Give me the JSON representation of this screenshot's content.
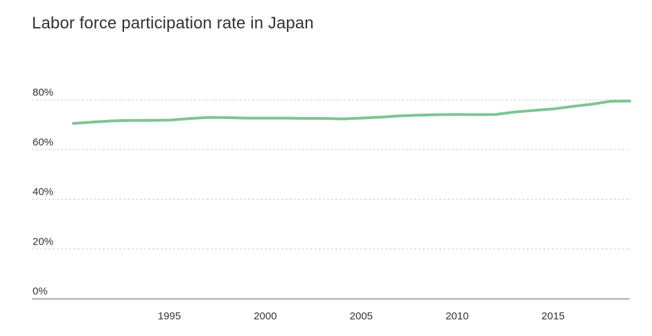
{
  "chart_data": {
    "type": "line",
    "title": "Labor force participation rate in Japan",
    "xlabel": "",
    "ylabel": "",
    "xlim": [
      1990,
      2019
    ],
    "ylim": [
      0,
      80
    ],
    "y_ticks": [
      {
        "value": 0,
        "label": "0%"
      },
      {
        "value": 20,
        "label": "20%"
      },
      {
        "value": 40,
        "label": "40%"
      },
      {
        "value": 60,
        "label": "60%"
      },
      {
        "value": 80,
        "label": "80%"
      }
    ],
    "x_ticks": [
      {
        "value": 1995,
        "label": "1995"
      },
      {
        "value": 2000,
        "label": "2000"
      },
      {
        "value": 2005,
        "label": "2005"
      },
      {
        "value": 2010,
        "label": "2010"
      },
      {
        "value": 2015,
        "label": "2015"
      }
    ],
    "grid": true,
    "legend": "none",
    "series": [
      {
        "color": "#7fc493",
        "x": [
          1990,
          1991,
          1992,
          1993,
          1994,
          1995,
          1996,
          1997,
          1998,
          1999,
          2000,
          2001,
          2002,
          2003,
          2004,
          2005,
          2006,
          2007,
          2008,
          2009,
          2010,
          2011,
          2012,
          2013,
          2014,
          2015,
          2016,
          2017,
          2018,
          2019
        ],
        "y": [
          70.5,
          71.0,
          71.5,
          71.7,
          71.7,
          71.8,
          72.4,
          72.9,
          72.8,
          72.6,
          72.6,
          72.6,
          72.5,
          72.5,
          72.3,
          72.6,
          73.0,
          73.5,
          73.8,
          74.0,
          74.1,
          74.0,
          74.1,
          75.1,
          75.7,
          76.3,
          77.3,
          78.2,
          79.4,
          79.5
        ]
      }
    ]
  }
}
